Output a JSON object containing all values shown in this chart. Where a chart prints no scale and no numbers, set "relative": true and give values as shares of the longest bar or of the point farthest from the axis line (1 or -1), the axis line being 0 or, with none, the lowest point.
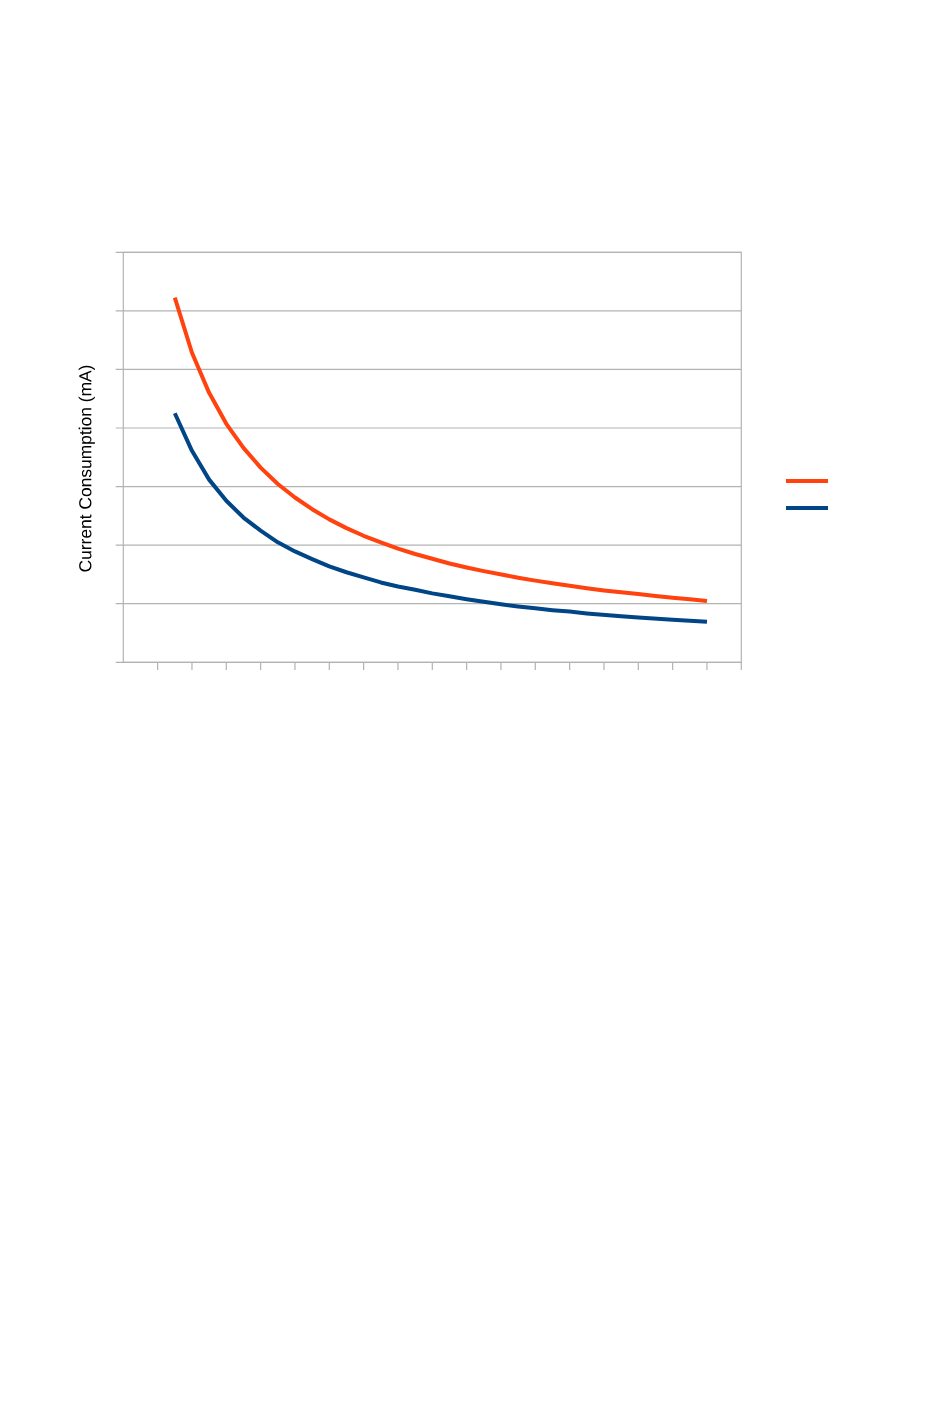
{
  "chart_data": {
    "type": "line",
    "ylabel": "Current Consumption (mA)",
    "categories": [
      null,
      null,
      null,
      null,
      null,
      null,
      null,
      null,
      null,
      null,
      null,
      null,
      null,
      null,
      null,
      null,
      null,
      null,
      null,
      null,
      null,
      null,
      null,
      null,
      null,
      null,
      null,
      null,
      null,
      null,
      null,
      null
    ],
    "relative": true,
    "grid": "y",
    "series": [
      {
        "color": "#ff420e",
        "values": [
          1.0,
          0.849,
          0.739,
          0.654,
          0.588,
          0.534,
          0.489,
          0.452,
          0.42,
          0.392,
          0.368,
          0.347,
          0.329,
          0.312,
          0.297,
          0.284,
          0.271,
          0.26,
          0.25,
          0.241,
          0.232,
          0.224,
          0.217,
          0.21,
          0.203,
          0.197,
          0.192,
          0.187,
          0.182,
          0.177,
          0.173,
          0.168
        ]
      },
      {
        "color": "#004586",
        "values": [
          0.683,
          0.58,
          0.501,
          0.443,
          0.397,
          0.361,
          0.329,
          0.304,
          0.283,
          0.263,
          0.247,
          0.233,
          0.219,
          0.208,
          0.199,
          0.189,
          0.181,
          0.173,
          0.166,
          0.159,
          0.153,
          0.148,
          0.143,
          0.139,
          0.134,
          0.13,
          0.126,
          0.123,
          0.12,
          0.117,
          0.114,
          0.111
        ]
      }
    ]
  }
}
